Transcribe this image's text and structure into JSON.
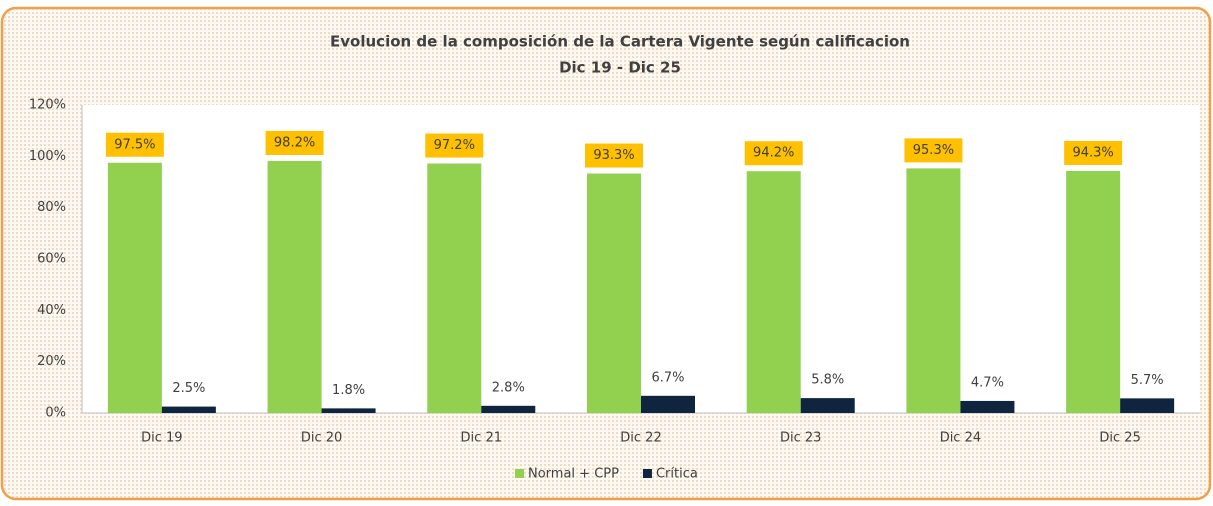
{
  "chart_data": {
    "type": "bar",
    "title": "Evolucion de la composición  de la Cartera Vigente según calificacion",
    "subtitle": "Dic 19 - Dic 25",
    "categories": [
      "Dic 19",
      "Dic 20",
      "Dic 21",
      "Dic 22",
      "Dic 23",
      "Dic 24",
      "Dic 25"
    ],
    "series": [
      {
        "name": "Normal + CPP",
        "color": "#92d050",
        "values": [
          97.5,
          98.2,
          97.2,
          93.3,
          94.2,
          95.3,
          94.3
        ],
        "value_labels": [
          "97.5%",
          "98.2%",
          "97.2%",
          "93.3%",
          "94.2%",
          "95.3%",
          "94.3%"
        ],
        "label_box": "#ffc000"
      },
      {
        "name": "Crítica",
        "color": "#0f243e",
        "values": [
          2.5,
          1.8,
          2.8,
          6.7,
          5.8,
          4.7,
          5.7
        ],
        "value_labels": [
          "2.5%",
          "1.8%",
          "2.8%",
          "6.7%",
          "5.8%",
          "4.7%",
          "5.7%"
        ]
      }
    ],
    "ylim": [
      0,
      120
    ],
    "yticks": [
      {
        "value": 0,
        "label": "0%"
      },
      {
        "value": 20,
        "label": "20%"
      },
      {
        "value": 40,
        "label": "40%"
      },
      {
        "value": 60,
        "label": "60%"
      },
      {
        "value": 80,
        "label": "80%"
      },
      {
        "value": 100,
        "label": "100%"
      },
      {
        "value": 120,
        "label": "120%"
      }
    ],
    "legend": "bottom"
  }
}
